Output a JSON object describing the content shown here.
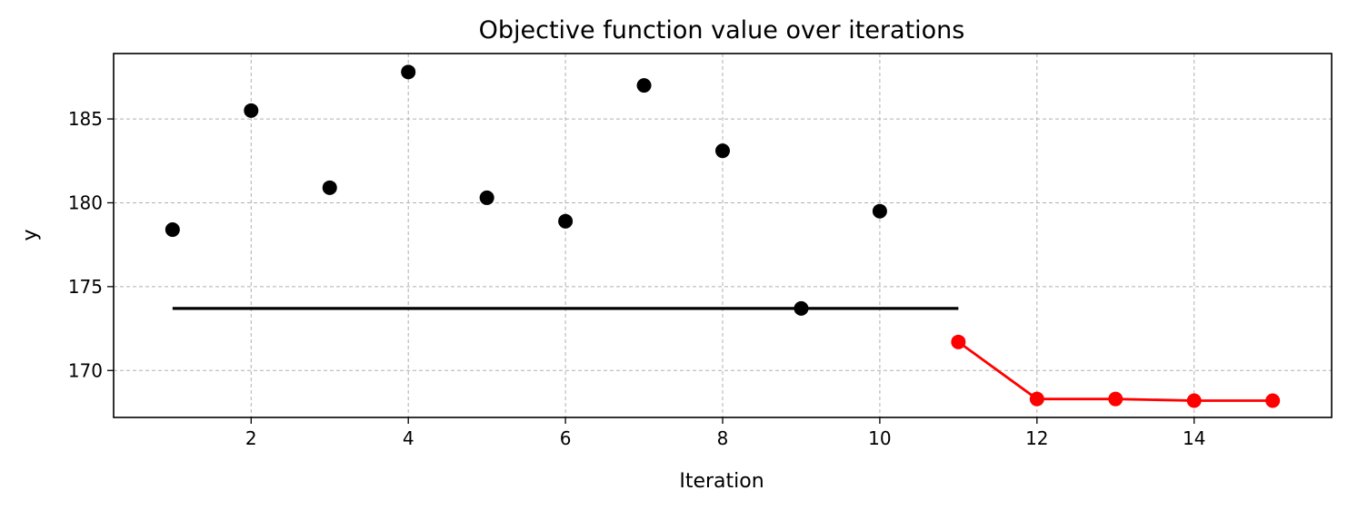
{
  "chart_data": {
    "type": "scatter",
    "title": "Objective function value over iterations",
    "xlabel": "Iteration",
    "ylabel": "y",
    "xlim": [
      0.25,
      15.75
    ],
    "ylim": [
      167.2,
      188.9
    ],
    "xticks": [
      2,
      4,
      6,
      8,
      10,
      12,
      14
    ],
    "yticks": [
      170,
      175,
      180,
      185
    ],
    "grid": true,
    "series": [
      {
        "style": "markers",
        "color": "#000000",
        "x": [
          1,
          2,
          3,
          4,
          5,
          6,
          7,
          8,
          9,
          10
        ],
        "y": [
          178.4,
          185.5,
          180.9,
          187.8,
          180.3,
          178.9,
          187.0,
          183.1,
          173.7,
          179.5
        ]
      },
      {
        "style": "line-markers",
        "color": "#ff0000",
        "x": [
          11,
          12,
          13,
          14,
          15
        ],
        "y": [
          171.7,
          168.3,
          168.3,
          168.2,
          168.2
        ]
      }
    ],
    "reference_lines": [
      {
        "orientation": "horizontal",
        "y": 173.7,
        "x_start": 1,
        "x_end": 11,
        "color": "#000000"
      }
    ]
  }
}
